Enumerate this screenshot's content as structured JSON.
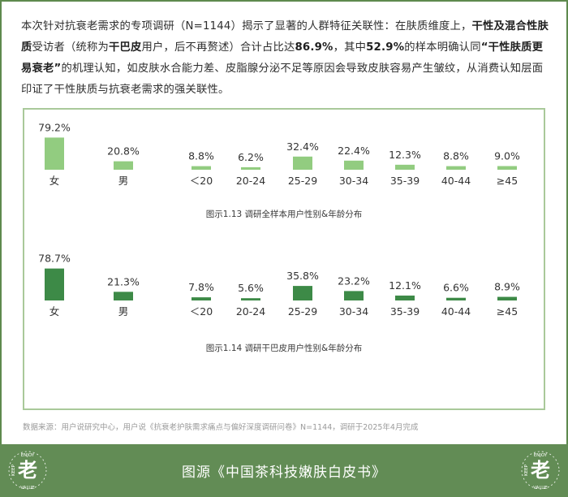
{
  "intro": {
    "s1": "本次针对抗衰老需求的专项调研（N=1144）揭示了显著的人群特征关联性：在肤质维度上，",
    "b1": "干性及混合性肤质",
    "s2": "受访者（统称为",
    "b2": "干巴皮",
    "s3": "用户，后不再赘述）合计占比达",
    "b3": "86.9%",
    "s4": "，其中",
    "b4": "52.9%",
    "s5": "的样本明确认同",
    "b5": "“干性肤质更易衰老”",
    "s6": "的机理认知，如皮肤水合能力差、皮脂腺分泌不足等原因会导致皮肤容易产生皱纹，从消费认知层面印证了干性肤质与抗衰老需求的强关联性。"
  },
  "colors": {
    "chart1_bar": "#92cc80",
    "chart2_bar": "#3d8a47",
    "frame": "#5e8a4e",
    "panel_border": "#a9c99a",
    "footer": "#628c55"
  },
  "chart_data": [
    {
      "type": "bar",
      "title": "图示1.13 调研全样本用户性别&年龄分布",
      "categories": [
        "女",
        "男",
        "＜20",
        "20-24",
        "25-29",
        "30-34",
        "35-39",
        "40-44",
        "≥45"
      ],
      "values": [
        79.2,
        20.8,
        8.8,
        6.2,
        32.4,
        22.4,
        12.3,
        8.8,
        9.0
      ],
      "labels": [
        "79.2%",
        "20.8%",
        "8.8%",
        "6.2%",
        "32.4%",
        "22.4%",
        "12.3%",
        "8.8%",
        "9.0%"
      ],
      "groups": [
        {
          "categories": [
            "女",
            "男"
          ]
        },
        {
          "categories": [
            "＜20",
            "20-24",
            "25-29",
            "30-34",
            "35-39",
            "40-44",
            "≥45"
          ]
        }
      ],
      "ylim": [
        0,
        80
      ],
      "grid": false,
      "color": "#92cc80"
    },
    {
      "type": "bar",
      "title": "图示1.14 调研干巴皮用户性别&年龄分布",
      "categories": [
        "女",
        "男",
        "＜20",
        "20-24",
        "25-29",
        "30-34",
        "35-39",
        "40-44",
        "≥45"
      ],
      "values": [
        78.7,
        21.3,
        7.8,
        5.6,
        35.8,
        23.2,
        12.1,
        6.6,
        8.9
      ],
      "labels": [
        "78.7%",
        "21.3%",
        "7.8%",
        "5.6%",
        "35.8%",
        "23.2%",
        "12.1%",
        "6.6%",
        "8.9%"
      ],
      "groups": [
        {
          "categories": [
            "女",
            "男"
          ]
        },
        {
          "categories": [
            "＜20",
            "20-24",
            "25-29",
            "30-34",
            "35-39",
            "40-44",
            "≥45"
          ]
        }
      ],
      "ylim": [
        0,
        80
      ],
      "grid": false,
      "color": "#3d8a47"
    }
  ],
  "source": "数据来源：用户说研究中心，用户说《抗衰老护肤需求痛点与偏好深度调研问卷》N=1144，调研于2025年4月完成",
  "footer": {
    "title": "图源《中国茶科技嫩肤白皮书》",
    "badge_top": "ENJOY",
    "badge_left": "KEEP",
    "badge_bottom": "VALUE",
    "badge_glyph": "老"
  }
}
